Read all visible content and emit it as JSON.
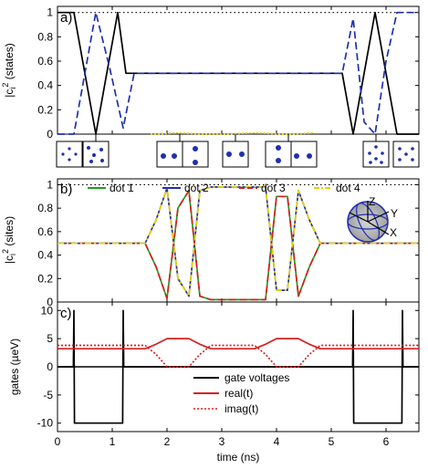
{
  "chart_data": [
    {
      "type": "line",
      "panel_label": "a)",
      "ylabel": "|c_i|² (states)",
      "ylabel_main": "|c",
      "ylabel_sub": "i",
      "ylabel_sup": "2",
      "ylabel_rest": " (states)",
      "xlim": [
        0,
        6.6
      ],
      "ylim": [
        0,
        1.05
      ],
      "yticks": [
        0,
        0.2,
        0.4,
        0.6,
        0.8,
        1
      ],
      "ytick_labels": [
        "0",
        "0.2",
        "0.4",
        "0.6",
        "0.8",
        "1"
      ],
      "reference_line": 1,
      "series": [
        {
          "color": "#000000",
          "style": "solid",
          "x": [
            0,
            0.3,
            0.5,
            0.7,
            0.9,
            1.1,
            1.25,
            1.4,
            1.6,
            5.0,
            5.2,
            5.4,
            5.6,
            5.8,
            6.0,
            6.2,
            6.6
          ],
          "y": [
            1,
            1,
            0.5,
            0,
            0.5,
            1,
            0.5,
            0.5,
            0.5,
            0.5,
            0.5,
            0,
            0.5,
            1,
            0.5,
            0,
            0
          ]
        },
        {
          "color": "#1f2fb0",
          "style": "dashed",
          "x": [
            0,
            0.3,
            0.5,
            0.7,
            0.95,
            1.2,
            1.4,
            1.6,
            5.0,
            5.2,
            5.4,
            5.6,
            5.8,
            6.0,
            6.2,
            6.4,
            6.6
          ],
          "y": [
            0,
            0,
            0.5,
            1,
            0.55,
            0.05,
            0.5,
            0.5,
            0.5,
            0.5,
            0.95,
            0.1,
            0,
            0.6,
            1,
            1,
            1
          ]
        },
        {
          "color": "#e8d200",
          "style": "dotted",
          "x": [
            1.7,
            2.2,
            2.7,
            3.0,
            3.6,
            4.2,
            4.7
          ],
          "y": [
            0,
            0.01,
            0,
            0,
            0.01,
            0,
            0.01
          ]
        }
      ]
    },
    {
      "type": "line",
      "panel_label": "b)",
      "ylabel": "|c_i|² (sites)",
      "ylabel_main": "|c",
      "ylabel_sub": "i",
      "ylabel_sup": "2",
      "ylabel_rest": " (sites)",
      "xlim": [
        0,
        6.6
      ],
      "ylim": [
        0,
        1.05
      ],
      "yticks": [
        0,
        0.2,
        0.4,
        0.6,
        0.8,
        1
      ],
      "ytick_labels": [
        "0",
        "0.2",
        "0.4",
        "0.6",
        "0.8",
        "1"
      ],
      "reference_line": 1,
      "legend": [
        "dot 1",
        "dot 2",
        "dot 3",
        "dot 4"
      ],
      "legend_placement": "top",
      "series": [
        {
          "name": "dot 1",
          "color": "#1e9e1e",
          "style": "solid",
          "x": [
            0,
            1.6,
            1.8,
            2.0,
            2.2,
            2.4,
            2.6,
            2.8,
            3.0,
            3.6,
            3.8,
            4.0,
            4.2,
            4.4,
            4.6,
            4.8,
            5.0,
            6.6
          ],
          "y": [
            0.5,
            0.5,
            0.3,
            0.03,
            0.8,
            0.95,
            0.05,
            0.02,
            0.02,
            0.02,
            0.02,
            0.9,
            0.9,
            0.05,
            0.3,
            0.5,
            0.5,
            0.5
          ]
        },
        {
          "name": "dot 2",
          "color": "#1f2fb0",
          "style": "solid",
          "x": [
            0,
            1.6,
            1.8,
            2.0,
            2.2,
            2.4,
            2.6,
            2.8,
            3.0,
            3.6,
            3.8,
            4.0,
            4.2,
            4.4,
            4.6,
            4.8,
            5.0,
            6.6
          ],
          "y": [
            0.5,
            0.5,
            0.7,
            0.97,
            0.2,
            0.05,
            0.95,
            0.98,
            0.98,
            0.98,
            0.98,
            0.1,
            0.1,
            0.95,
            0.7,
            0.5,
            0.5,
            0.5
          ]
        },
        {
          "name": "dot 3",
          "color": "#d42020",
          "style": "dashed",
          "x": [
            0,
            1.6,
            1.8,
            2.0,
            2.2,
            2.4,
            2.6,
            2.8,
            3.0,
            3.6,
            3.8,
            4.0,
            4.2,
            4.4,
            4.6,
            4.8,
            5.0,
            6.6
          ],
          "y": [
            0.5,
            0.5,
            0.3,
            0.03,
            0.8,
            0.95,
            0.05,
            0.02,
            0.02,
            0.02,
            0.02,
            0.9,
            0.9,
            0.05,
            0.3,
            0.5,
            0.5,
            0.5
          ]
        },
        {
          "name": "dot 4",
          "color": "#e8d200",
          "style": "dashdot",
          "x": [
            0,
            1.6,
            1.8,
            2.0,
            2.2,
            2.4,
            2.6,
            2.8,
            3.0,
            3.6,
            3.8,
            4.0,
            4.2,
            4.4,
            4.6,
            4.8,
            5.0,
            6.6
          ],
          "y": [
            0.5,
            0.5,
            0.7,
            0.97,
            0.2,
            0.05,
            0.95,
            0.98,
            0.98,
            0.98,
            0.98,
            0.1,
            0.1,
            0.95,
            0.7,
            0.5,
            0.5,
            0.5
          ]
        }
      ],
      "sphere_axis_labels": [
        "Z",
        "Y",
        "X"
      ]
    },
    {
      "type": "line",
      "panel_label": "c)",
      "ylabel": "gates (µeV)",
      "xlabel": "time (ns)",
      "xlim": [
        0,
        6.6
      ],
      "ylim": [
        -11.5,
        11.5
      ],
      "xticks": [
        0,
        1,
        2,
        3,
        4,
        5,
        6
      ],
      "xtick_labels": [
        "0",
        "1",
        "2",
        "3",
        "4",
        "5",
        "6"
      ],
      "yticks": [
        -10,
        -5,
        0,
        5,
        10
      ],
      "ytick_labels": [
        "-10",
        "-5",
        "0",
        "5",
        "10"
      ],
      "legend": [
        "gate voltages",
        "real(t)",
        "imag(t)"
      ],
      "legend_placement": "bottom-center",
      "series": [
        {
          "name": "gate voltages",
          "color": "#000000",
          "style": "solid",
          "x": [
            0,
            0.29,
            0.3,
            0.31,
            1.19,
            1.2,
            1.21,
            5.39,
            5.4,
            5.41,
            6.29,
            6.3,
            6.31,
            6.6
          ],
          "y": [
            0,
            0,
            10,
            -10,
            -10,
            10,
            0,
            0,
            10,
            -10,
            -10,
            10,
            0,
            0
          ]
        },
        {
          "name": "real(t)",
          "color": "#d42020",
          "style": "solid",
          "x": [
            0,
            1.6,
            1.8,
            2.0,
            2.4,
            2.6,
            2.8,
            3.0,
            3.6,
            3.8,
            4.0,
            4.4,
            4.6,
            4.8,
            5.0,
            6.6
          ],
          "y": [
            3.2,
            3.2,
            4.0,
            5.0,
            5.0,
            4.0,
            3.2,
            3.2,
            3.2,
            4.0,
            5.0,
            5.0,
            4.0,
            3.2,
            3.2,
            3.2
          ]
        },
        {
          "name": "imag(t)",
          "color": "#d42020",
          "style": "dotted",
          "x": [
            0,
            1.6,
            1.8,
            2.0,
            2.4,
            2.6,
            2.8,
            3.0,
            3.6,
            3.8,
            4.0,
            4.4,
            4.6,
            4.8,
            5.0,
            6.6
          ],
          "y": [
            3.8,
            3.8,
            2.2,
            0,
            0,
            2.2,
            3.8,
            3.8,
            3.8,
            2.2,
            0,
            0,
            2.2,
            3.8,
            3.8,
            3.8
          ]
        }
      ]
    }
  ]
}
